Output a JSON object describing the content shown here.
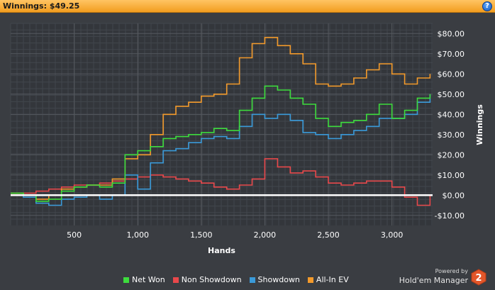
{
  "header": {
    "title": "Winnings: $49.25",
    "help_icon": "?"
  },
  "chart_data": {
    "type": "line",
    "xlabel": "Hands",
    "ylabel": "Winnings",
    "xlim": [
      0,
      3320
    ],
    "ylim": [
      -15,
      85
    ],
    "x_ticks": [
      500,
      1000,
      1500,
      2000,
      2500,
      3000
    ],
    "x_tick_labels": [
      "500",
      "1,000",
      "1,500",
      "2,000",
      "2,500",
      "3,000"
    ],
    "y_ticks": [
      -10,
      0,
      10,
      20,
      30,
      40,
      50,
      60,
      70,
      80
    ],
    "y_tick_labels": [
      "-$10.00",
      "$0.00",
      "$10.00",
      "$20.00",
      "$30.00",
      "$40.00",
      "$50.00",
      "$60.00",
      "$70.00",
      "$80.00"
    ],
    "x": [
      0,
      100,
      200,
      300,
      400,
      500,
      600,
      700,
      800,
      900,
      1000,
      1100,
      1200,
      1300,
      1400,
      1500,
      1600,
      1700,
      1800,
      1900,
      2000,
      2100,
      2200,
      2300,
      2400,
      2500,
      2600,
      2700,
      2800,
      2900,
      3000,
      3100,
      3200,
      3300
    ],
    "series": [
      {
        "name": "Net Won",
        "color": "#3ddc3d",
        "values": [
          1,
          0,
          -3,
          -2,
          2,
          4,
          5,
          4,
          6,
          20,
          22,
          24,
          28,
          29,
          30,
          31,
          33,
          32,
          42,
          48,
          54,
          52,
          48,
          45,
          38,
          34,
          36,
          37,
          40,
          45,
          38,
          42,
          48,
          50
        ]
      },
      {
        "name": "Non Showdown",
        "color": "#e8484b",
        "values": [
          1,
          1,
          2,
          3,
          4,
          5,
          5,
          6,
          7,
          8,
          9,
          10,
          9,
          8,
          7,
          6,
          4,
          3,
          5,
          8,
          18,
          14,
          11,
          12,
          9,
          6,
          5,
          6,
          7,
          7,
          4,
          -1,
          -5,
          0
        ]
      },
      {
        "name": "Showdown",
        "color": "#3a9ad9",
        "values": [
          0,
          -1,
          -4,
          -5,
          -2,
          -1,
          0,
          -2,
          0,
          10,
          3,
          16,
          22,
          23,
          26,
          28,
          29,
          28,
          34,
          40,
          38,
          40,
          37,
          31,
          30,
          28,
          30,
          32,
          34,
          38,
          38,
          40,
          46,
          50
        ]
      },
      {
        "name": "All-In EV",
        "color": "#f39a2b",
        "values": [
          1,
          0,
          -2,
          0,
          3,
          4,
          5,
          5,
          8,
          18,
          20,
          30,
          40,
          44,
          46,
          49,
          50,
          55,
          68,
          75,
          78,
          74,
          70,
          65,
          55,
          54,
          55,
          58,
          62,
          65,
          60,
          55,
          58,
          60
        ]
      }
    ]
  },
  "legend": [
    {
      "label": "Net Won",
      "color": "#3ddc3d"
    },
    {
      "label": "Non Showdown",
      "color": "#e8484b"
    },
    {
      "label": "Showdown",
      "color": "#3a9ad9"
    },
    {
      "label": "All-In EV",
      "color": "#f39a2b"
    }
  ],
  "footer": {
    "powered_by": "Powered by",
    "brand": "Hold'em Manager",
    "logo_number": "2"
  }
}
